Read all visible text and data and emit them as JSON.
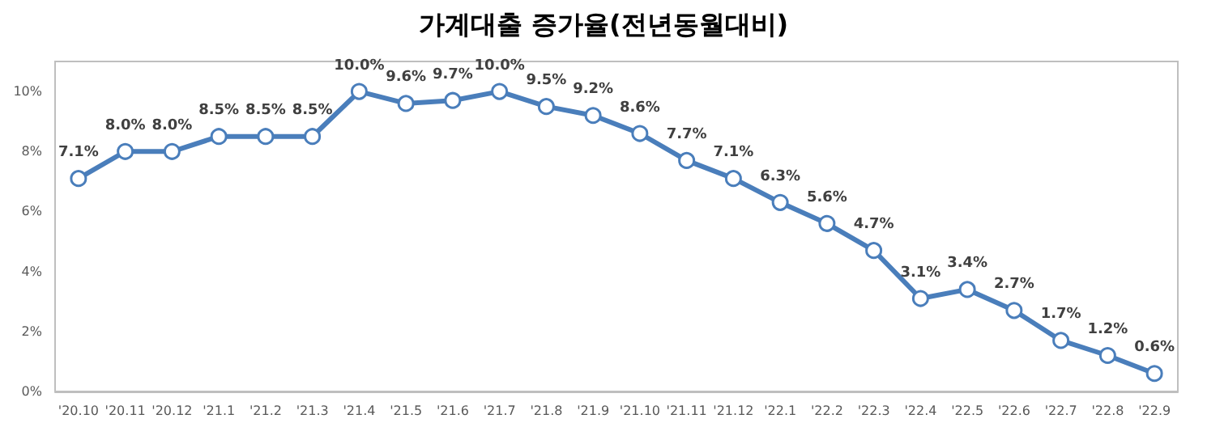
{
  "chart_data": {
    "type": "line",
    "title": "가계대출 증가율(전년동월대비)",
    "categories": [
      "'20.10",
      "'20.11",
      "'20.12",
      "'21.1",
      "'21.2",
      "'21.3",
      "'21.4",
      "'21.5",
      "'21.6",
      "'21.7",
      "'21.8",
      "'21.9",
      "'21.10",
      "'21.11",
      "'21.12",
      "'22.1",
      "'22.2",
      "'22.3",
      "'22.4",
      "'22.5",
      "'22.6",
      "'22.7",
      "'22.8",
      "'22.9"
    ],
    "series": [
      {
        "color": "#4a7ebb",
        "values": [
          7.1,
          8.0,
          8.0,
          8.5,
          8.5,
          8.5,
          10.0,
          9.6,
          9.7,
          10.0,
          9.5,
          9.2,
          8.6,
          7.7,
          7.1,
          6.3,
          5.6,
          4.7,
          3.1,
          3.4,
          2.7,
          1.7,
          1.2,
          0.6
        ],
        "value_labels": [
          "7.1%",
          "8.0%",
          "8.0%",
          "8.5%",
          "8.5%",
          "8.5%",
          "10.0%",
          "9.6%",
          "9.7%",
          "10.0%",
          "9.5%",
          "9.2%",
          "8.6%",
          "7.7%",
          "7.1%",
          "6.3%",
          "5.6%",
          "4.7%",
          "3.1%",
          "3.4%",
          "2.7%",
          "1.7%",
          "1.2%",
          "0.6%"
        ]
      }
    ],
    "ylim": [
      0,
      11
    ],
    "yticks": [
      {
        "value": 0,
        "label": "0%"
      },
      {
        "value": 2,
        "label": "2%"
      },
      {
        "value": 4,
        "label": "4%"
      },
      {
        "value": 6,
        "label": "6%"
      },
      {
        "value": 8,
        "label": "8%"
      },
      {
        "value": 10,
        "label": "10%"
      }
    ],
    "grid": false,
    "marker": "circle",
    "line_style": "solid"
  }
}
